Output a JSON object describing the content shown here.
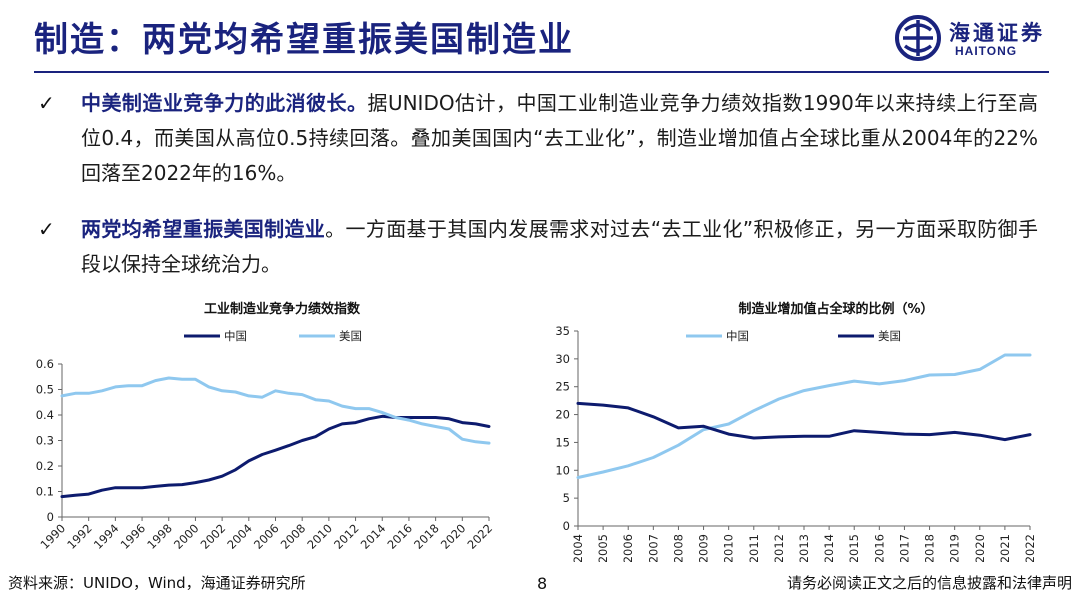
{
  "header": {
    "title": "制造：两党均希望重振美国制造业",
    "logo": {
      "cn": "海通证券",
      "en": "HAITONG"
    }
  },
  "bullets": [
    {
      "lead": "中美制造业竞争力的此消彼长。",
      "body": "据UNIDO估计，中国工业制造业竞争力绩效指数1990年以来持续上行至高位0.4，而美国从高位0.5持续回落。叠加美国国内“去工业化”，制造业增加值占全球比重从2004年的22%回落至2022年的16%。"
    },
    {
      "lead": "两党均希望重振美国制造业",
      "body": "。一方面基于其国内发展需求对过去“去工业化”积极修正，另一方面采取防御手段以保持全球统治力。"
    }
  ],
  "colors": {
    "navy": "#0d1b6e",
    "light_blue": "#8fc8ef",
    "title": "#1a237e"
  },
  "chart_data": [
    {
      "type": "line",
      "title": "工业制造业竞争力绩效指数",
      "x": [
        1990,
        1991,
        1992,
        1993,
        1994,
        1995,
        1996,
        1997,
        1998,
        1999,
        2000,
        2001,
        2002,
        2003,
        2004,
        2005,
        2006,
        2007,
        2008,
        2009,
        2010,
        2011,
        2012,
        2013,
        2014,
        2015,
        2016,
        2017,
        2018,
        2019,
        2020,
        2021,
        2022
      ],
      "xticks": [
        "1990",
        "1992",
        "1994",
        "1996",
        "1998",
        "2000",
        "2002",
        "2004",
        "2006",
        "2008",
        "2010",
        "2012",
        "2014",
        "2016",
        "2018",
        "2020",
        "2022"
      ],
      "yticks": [
        "0",
        "0.1",
        "0.2",
        "0.3",
        "0.4",
        "0.5",
        "0.6"
      ],
      "ylim": [
        0,
        0.6
      ],
      "legend_position": "top",
      "series": [
        {
          "name": "中国",
          "color": "#0d1b6e",
          "values": [
            0.08,
            0.085,
            0.09,
            0.105,
            0.115,
            0.115,
            0.115,
            0.12,
            0.125,
            0.127,
            0.135,
            0.145,
            0.16,
            0.185,
            0.22,
            0.245,
            0.262,
            0.28,
            0.3,
            0.315,
            0.345,
            0.365,
            0.37,
            0.385,
            0.395,
            0.39,
            0.39,
            0.39,
            0.39,
            0.385,
            0.37,
            0.365,
            0.355
          ]
        },
        {
          "name": "美国",
          "color": "#8fc8ef",
          "values": [
            0.475,
            0.485,
            0.485,
            0.495,
            0.51,
            0.515,
            0.515,
            0.535,
            0.545,
            0.54,
            0.54,
            0.51,
            0.495,
            0.49,
            0.475,
            0.47,
            0.495,
            0.485,
            0.48,
            0.46,
            0.455,
            0.435,
            0.425,
            0.425,
            0.41,
            0.39,
            0.38,
            0.365,
            0.355,
            0.345,
            0.305,
            0.295,
            0.29
          ]
        }
      ]
    },
    {
      "type": "line",
      "title": "制造业增加值占全球的比例（%）",
      "x": [
        2004,
        2005,
        2006,
        2007,
        2008,
        2009,
        2010,
        2011,
        2012,
        2013,
        2014,
        2015,
        2016,
        2017,
        2018,
        2019,
        2020,
        2021,
        2022
      ],
      "xticks": [
        "2004",
        "2005",
        "2006",
        "2007",
        "2008",
        "2009",
        "2010",
        "2011",
        "2012",
        "2013",
        "2014",
        "2015",
        "2016",
        "2017",
        "2018",
        "2019",
        "2020",
        "2021",
        "2022"
      ],
      "yticks": [
        "0",
        "5",
        "10",
        "15",
        "20",
        "25",
        "30",
        "35"
      ],
      "ylim": [
        0,
        35
      ],
      "legend_position": "top",
      "series": [
        {
          "name": "中国",
          "color": "#8fc8ef",
          "values": [
            8.7,
            9.7,
            10.8,
            12.3,
            14.5,
            17.3,
            18.3,
            20.7,
            22.8,
            24.3,
            25.2,
            26.0,
            25.5,
            26.1,
            27.1,
            27.2,
            28.1,
            30.7,
            30.7
          ]
        },
        {
          "name": "美国",
          "color": "#0d1b6e",
          "values": [
            22.0,
            21.7,
            21.2,
            19.6,
            17.6,
            17.9,
            16.5,
            15.8,
            16.0,
            16.1,
            16.1,
            17.1,
            16.8,
            16.5,
            16.4,
            16.8,
            16.3,
            15.5,
            16.4
          ]
        }
      ]
    }
  ],
  "footer": {
    "source": "资料来源：UNIDO，Wind，海通证券研究所",
    "page": "8",
    "disclaimer": "请务必阅读正文之后的信息披露和法律声明"
  }
}
